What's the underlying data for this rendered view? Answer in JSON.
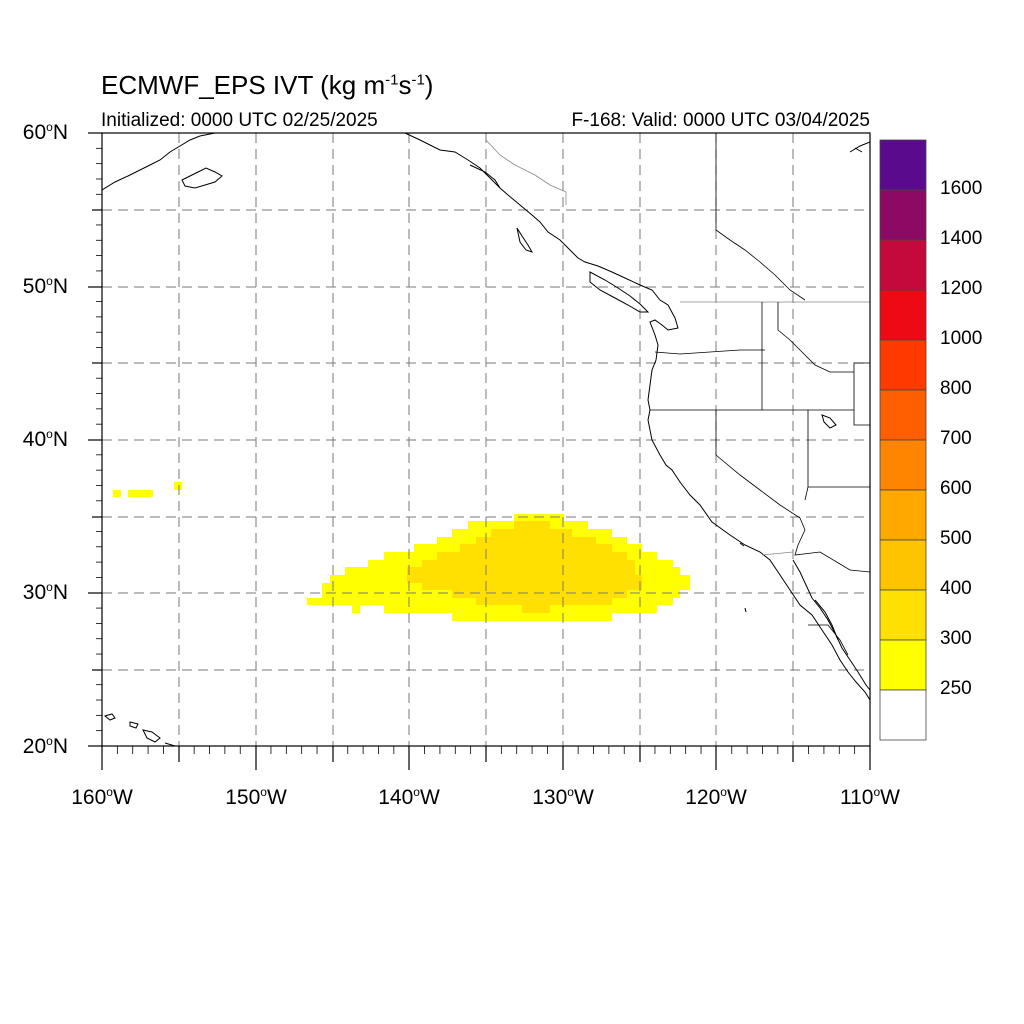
{
  "title": {
    "prefix": "ECMWF_EPS IVT (kg m",
    "exp1": "-1",
    "mid": "s",
    "exp2": "-1",
    "suffix": ")"
  },
  "subtitle_left": "Initialized: 0000 UTC 02/25/2025",
  "subtitle_right": "F-168: Valid: 0000 UTC 03/04/2025",
  "lat_axis": [
    {
      "value": "60",
      "suffix": "N"
    },
    {
      "value": "50",
      "suffix": "N"
    },
    {
      "value": "40",
      "suffix": "N"
    },
    {
      "value": "30",
      "suffix": "N"
    },
    {
      "value": "20",
      "suffix": "N"
    }
  ],
  "lon_axis": [
    {
      "value": "160",
      "suffix": "W"
    },
    {
      "value": "150",
      "suffix": "W"
    },
    {
      "value": "140",
      "suffix": "W"
    },
    {
      "value": "130",
      "suffix": "W"
    },
    {
      "value": "120",
      "suffix": "W"
    },
    {
      "value": "110",
      "suffix": "W"
    }
  ],
  "degree_symbol": "o",
  "map_extent": {
    "lon_min": -160,
    "lon_max": -110,
    "lat_min": 20,
    "lat_max": 60
  },
  "colorbar": {
    "labels": [
      "1600",
      "1400",
      "1200",
      "1000",
      "800",
      "700",
      "600",
      "500",
      "400",
      "300",
      "250"
    ],
    "colors": [
      "#5a0a8c",
      "#8c0a64",
      "#c40a3c",
      "#ee0a14",
      "#ff3a00",
      "#ff5f00",
      "#ff8400",
      "#ffa800",
      "#ffc400",
      "#ffe000",
      "#ffff00",
      "#ffffff"
    ]
  },
  "ivt_field": [
    {
      "level": "250-300",
      "color": "#ffff00"
    },
    {
      "level": "300-400",
      "color": "#ffe000"
    }
  ]
}
